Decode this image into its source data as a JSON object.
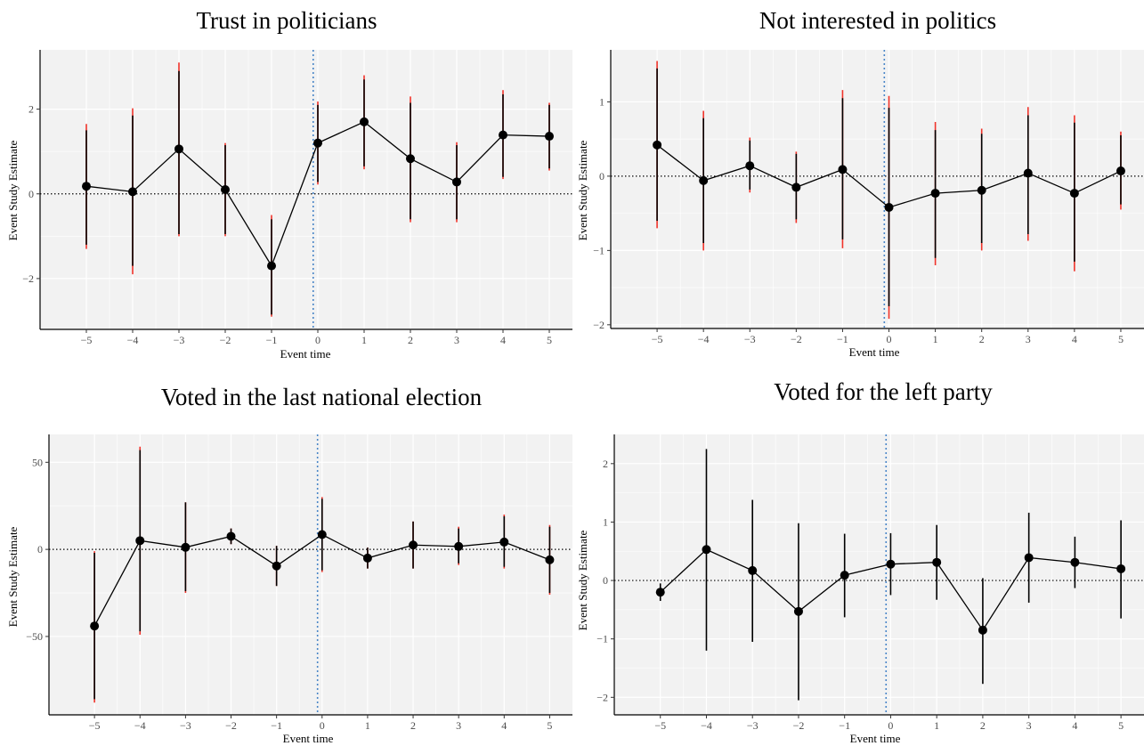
{
  "chart_data": [
    {
      "type": "scatter",
      "title": "Trust in politicians",
      "xlabel": "Event time",
      "ylabel": "Event Study Estimate",
      "xlim": [
        -6,
        5.5
      ],
      "ylim": [
        -3.2,
        3.4
      ],
      "x": [
        -5,
        -4,
        -3,
        -2,
        -1,
        0,
        1,
        2,
        3,
        4,
        5
      ],
      "xticks": [
        "−5",
        "−4",
        "−3",
        "−2",
        "−1",
        "0",
        "1",
        "2",
        "3",
        "4",
        "5"
      ],
      "yticks": [
        {
          "value": 2,
          "label": "2"
        },
        {
          "value": 0,
          "label": "0"
        },
        {
          "value": -2,
          "label": "−2"
        }
      ],
      "estimate": [
        0.18,
        0.05,
        1.06,
        0.1,
        -1.7,
        1.2,
        1.7,
        0.83,
        0.28,
        1.39,
        1.36
      ],
      "ci_black": [
        [
          -1.2,
          1.5
        ],
        [
          -1.7,
          1.85
        ],
        [
          -0.95,
          2.9
        ],
        [
          -0.95,
          1.15
        ],
        [
          -2.85,
          -0.6
        ],
        [
          0.28,
          2.1
        ],
        [
          0.65,
          2.7
        ],
        [
          -0.6,
          2.15
        ],
        [
          -0.6,
          1.15
        ],
        [
          0.4,
          2.35
        ],
        [
          0.6,
          2.1
        ]
      ],
      "ci_red": [
        [
          -1.3,
          1.65
        ],
        [
          -1.9,
          2.02
        ],
        [
          -1.0,
          3.1
        ],
        [
          -1.0,
          1.2
        ],
        [
          -2.9,
          -0.5
        ],
        [
          0.22,
          2.18
        ],
        [
          0.58,
          2.8
        ],
        [
          -0.67,
          2.3
        ],
        [
          -0.67,
          1.22
        ],
        [
          0.35,
          2.45
        ],
        [
          0.55,
          2.15
        ]
      ],
      "reference_vline": -0.1,
      "reference_hline": 0,
      "grid": true
    },
    {
      "type": "scatter",
      "title": "Not interested in politics",
      "xlabel": "Event time",
      "ylabel": "Event Study Estimate",
      "xlim": [
        -6,
        5.5
      ],
      "ylim": [
        -2.05,
        1.7
      ],
      "x": [
        -5,
        -4,
        -3,
        -2,
        -1,
        0,
        1,
        2,
        3,
        4,
        5
      ],
      "xticks": [
        "−5",
        "−4",
        "−3",
        "−2",
        "−1",
        "0",
        "1",
        "2",
        "3",
        "4",
        "5"
      ],
      "yticks": [
        {
          "value": 1,
          "label": "1"
        },
        {
          "value": 0,
          "label": "0"
        },
        {
          "value": -1,
          "label": "−1"
        },
        {
          "value": -2,
          "label": "−2"
        }
      ],
      "estimate": [
        0.42,
        -0.06,
        0.14,
        -0.15,
        0.09,
        -0.42,
        -0.23,
        -0.19,
        0.04,
        -0.23,
        0.07
      ],
      "ci_black": [
        [
          -0.6,
          1.45
        ],
        [
          -0.9,
          0.78
        ],
        [
          -0.18,
          0.48
        ],
        [
          -0.58,
          0.3
        ],
        [
          -0.85,
          1.05
        ],
        [
          -1.75,
          0.92
        ],
        [
          -1.1,
          0.62
        ],
        [
          -0.9,
          0.57
        ],
        [
          -0.78,
          0.82
        ],
        [
          -1.15,
          0.72
        ],
        [
          -0.38,
          0.55
        ]
      ],
      "ci_red": [
        [
          -0.7,
          1.55
        ],
        [
          -1.0,
          0.88
        ],
        [
          -0.22,
          0.52
        ],
        [
          -0.63,
          0.33
        ],
        [
          -0.97,
          1.16
        ],
        [
          -1.92,
          1.08
        ],
        [
          -1.2,
          0.73
        ],
        [
          -1.0,
          0.64
        ],
        [
          -0.87,
          0.93
        ],
        [
          -1.28,
          0.82
        ],
        [
          -0.45,
          0.6
        ]
      ],
      "reference_vline": -0.1,
      "reference_hline": 0,
      "grid": true
    },
    {
      "type": "scatter",
      "title": "Voted in the last national election",
      "xlabel": "Event time",
      "ylabel": "Event Study Estimate",
      "xlim": [
        -6,
        5.5
      ],
      "ylim": [
        -95,
        66
      ],
      "x": [
        -5,
        -4,
        -3,
        -2,
        -1,
        0,
        1,
        2,
        3,
        4,
        5
      ],
      "xticks": [
        "−5",
        "−4",
        "−3",
        "−2",
        "−1",
        "0",
        "1",
        "2",
        "3",
        "4",
        "5"
      ],
      "yticks": [
        {
          "value": 50,
          "label": "50"
        },
        {
          "value": 0,
          "label": "0"
        },
        {
          "value": -50,
          "label": "−50"
        }
      ],
      "estimate": [
        -44,
        5,
        1.2,
        7.5,
        -9.5,
        8.5,
        -5,
        2.5,
        1.7,
        4.2,
        -6
      ],
      "ci_black": [
        [
          -86,
          -2
        ],
        [
          -47,
          57
        ],
        [
          -24,
          27
        ],
        [
          3,
          12
        ],
        [
          -21,
          2
        ],
        [
          -12,
          29
        ],
        [
          -11,
          1
        ],
        [
          -11,
          16
        ],
        [
          -8,
          12
        ],
        [
          -10,
          19
        ],
        [
          -25,
          13
        ]
      ],
      "ci_red": [
        [
          -88,
          -1
        ],
        [
          -49,
          59
        ],
        [
          -25,
          27
        ],
        [
          3,
          12
        ],
        [
          -21,
          2
        ],
        [
          -13,
          30
        ],
        [
          -11,
          1
        ],
        [
          -11,
          16
        ],
        [
          -9,
          13
        ],
        [
          -11,
          20
        ],
        [
          -26,
          14
        ]
      ],
      "reference_vline": -0.1,
      "reference_hline": 0,
      "grid": true
    },
    {
      "type": "scatter",
      "title": "Voted for the left party",
      "xlabel": "Event time",
      "ylabel": "Event Study Estimate",
      "xlim": [
        -6,
        5.5
      ],
      "ylim": [
        -2.3,
        2.5
      ],
      "x": [
        -5,
        -4,
        -3,
        -2,
        -1,
        0,
        1,
        2,
        3,
        4,
        5
      ],
      "xticks": [
        "−5",
        "−4",
        "−3",
        "−2",
        "−1",
        "0",
        "1",
        "2",
        "3",
        "4",
        "5"
      ],
      "yticks": [
        {
          "value": 2,
          "label": "2"
        },
        {
          "value": 1,
          "label": "1"
        },
        {
          "value": 0,
          "label": "0"
        },
        {
          "value": -1,
          "label": "−1"
        },
        {
          "value": -2,
          "label": "−2"
        }
      ],
      "estimate": [
        -0.2,
        0.53,
        0.17,
        -0.53,
        0.09,
        0.28,
        0.31,
        -0.85,
        0.39,
        0.31,
        0.2
      ],
      "ci_black": [
        [
          -0.35,
          -0.05
        ],
        [
          -1.2,
          2.25
        ],
        [
          -1.05,
          1.38
        ],
        [
          -2.05,
          0.98
        ],
        [
          -0.63,
          0.8
        ],
        [
          -0.25,
          0.81
        ],
        [
          -0.33,
          0.95
        ],
        [
          -1.77,
          0.04
        ],
        [
          -0.38,
          1.16
        ],
        [
          -0.13,
          0.75
        ],
        [
          -0.65,
          1.03
        ]
      ],
      "ci_red": [],
      "reference_vline": -0.1,
      "reference_hline": 0,
      "grid": true
    }
  ]
}
